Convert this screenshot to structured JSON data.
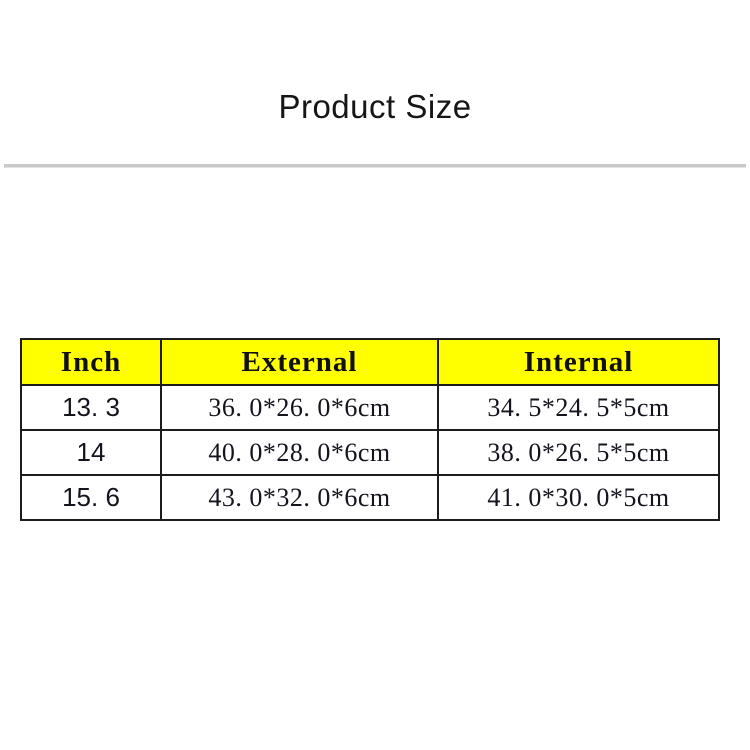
{
  "page": {
    "title": "Product Size",
    "background_color": "#ffffff",
    "divider_color": "#c9c9c9"
  },
  "table": {
    "header_background_color": "#ffff00",
    "border_color": "#1c1c1c",
    "columns": [
      "Inch",
      "External",
      "Internal"
    ],
    "rows": [
      [
        "13. 3",
        "36. 0*26. 0*6cm",
        "34. 5*24. 5*5cm"
      ],
      [
        "14",
        "40. 0*28. 0*6cm",
        "38. 0*26. 5*5cm"
      ],
      [
        "15. 6",
        "43. 0*32. 0*6cm",
        "41. 0*30. 0*5cm"
      ]
    ]
  }
}
